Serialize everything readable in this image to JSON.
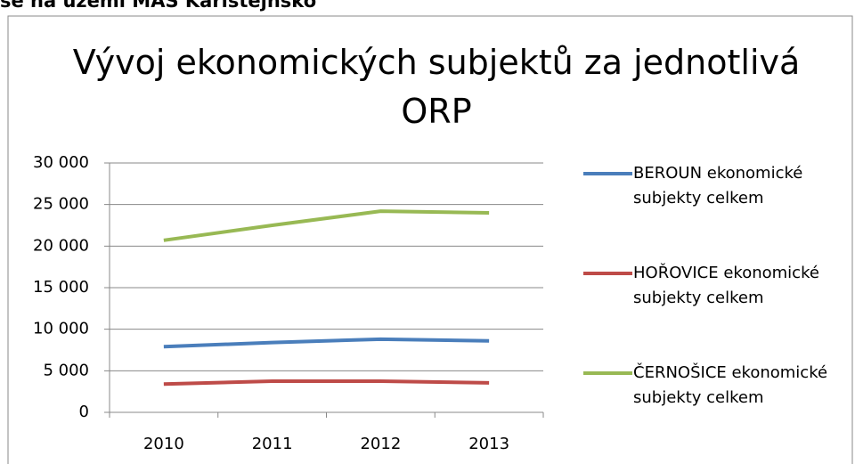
{
  "heading": "se na území MAS Karlštejnsko",
  "chart_data": {
    "type": "line",
    "title": "Vývoj ekonomických subjektů za jednotlivá ORP",
    "categories": [
      "2010",
      "2011",
      "2012",
      "2013"
    ],
    "series": [
      {
        "name": "BEROUN ekonomické subjekty celkem",
        "color": "#4a7ebb",
        "values": [
          7900,
          8400,
          8800,
          8600
        ]
      },
      {
        "name": "HOŘOVICE ekonomické subjekty celkem",
        "color": "#be4b48",
        "values": [
          3400,
          3750,
          3750,
          3550
        ]
      },
      {
        "name": "ČERNOŠICE ekonomické subjekty celkem",
        "color": "#98b954",
        "values": [
          20700,
          22500,
          24200,
          24000
        ]
      }
    ],
    "ylim": [
      0,
      30000
    ],
    "yticks": [
      {
        "value": 0,
        "label": "0"
      },
      {
        "value": 5000,
        "label": "5 000"
      },
      {
        "value": 10000,
        "label": "10 000"
      },
      {
        "value": 15000,
        "label": "15 000"
      },
      {
        "value": 20000,
        "label": "20 000"
      },
      {
        "value": 25000,
        "label": "25 000"
      },
      {
        "value": 30000,
        "label": "30 000"
      }
    ],
    "grid": true,
    "legend": "right"
  }
}
